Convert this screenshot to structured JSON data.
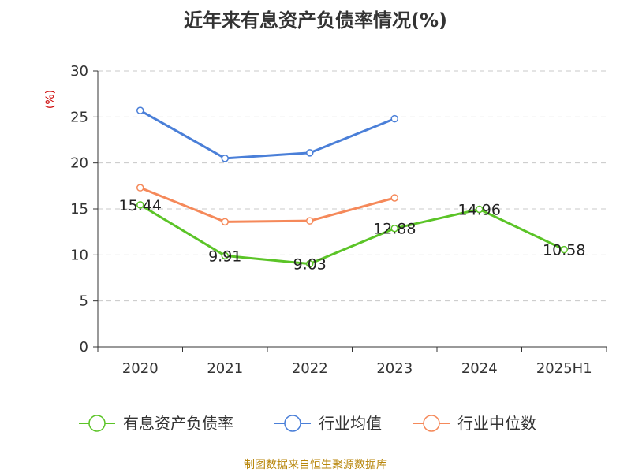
{
  "chart_data": {
    "type": "line",
    "title": "近年来有息资产负债率情况(%)",
    "y_unit": "(%)",
    "categories": [
      "2020",
      "2021",
      "2022",
      "2023",
      "2024",
      "2025H1"
    ],
    "ylim": [
      0,
      30
    ],
    "yticks": [
      "0",
      "5",
      "10",
      "15",
      "20",
      "25",
      "30"
    ],
    "grid": true,
    "legend_position": "bottom",
    "series": [
      {
        "name": "有息资产负债率",
        "color": "#5bc427",
        "values": [
          15.44,
          9.91,
          9.03,
          12.88,
          14.96,
          10.58
        ],
        "labels": [
          "15.44",
          "9.91",
          "9.03",
          "12.88",
          "14.96",
          "10.58"
        ]
      },
      {
        "name": "行业均值",
        "color": "#4a7fd8",
        "values": [
          25.7,
          20.5,
          21.1,
          24.8,
          null,
          null
        ]
      },
      {
        "name": "行业中位数",
        "color": "#f5895a",
        "values": [
          17.3,
          13.6,
          13.7,
          16.2,
          null,
          null
        ]
      }
    ]
  },
  "source_text": "制图数据来自恒生聚源数据库"
}
